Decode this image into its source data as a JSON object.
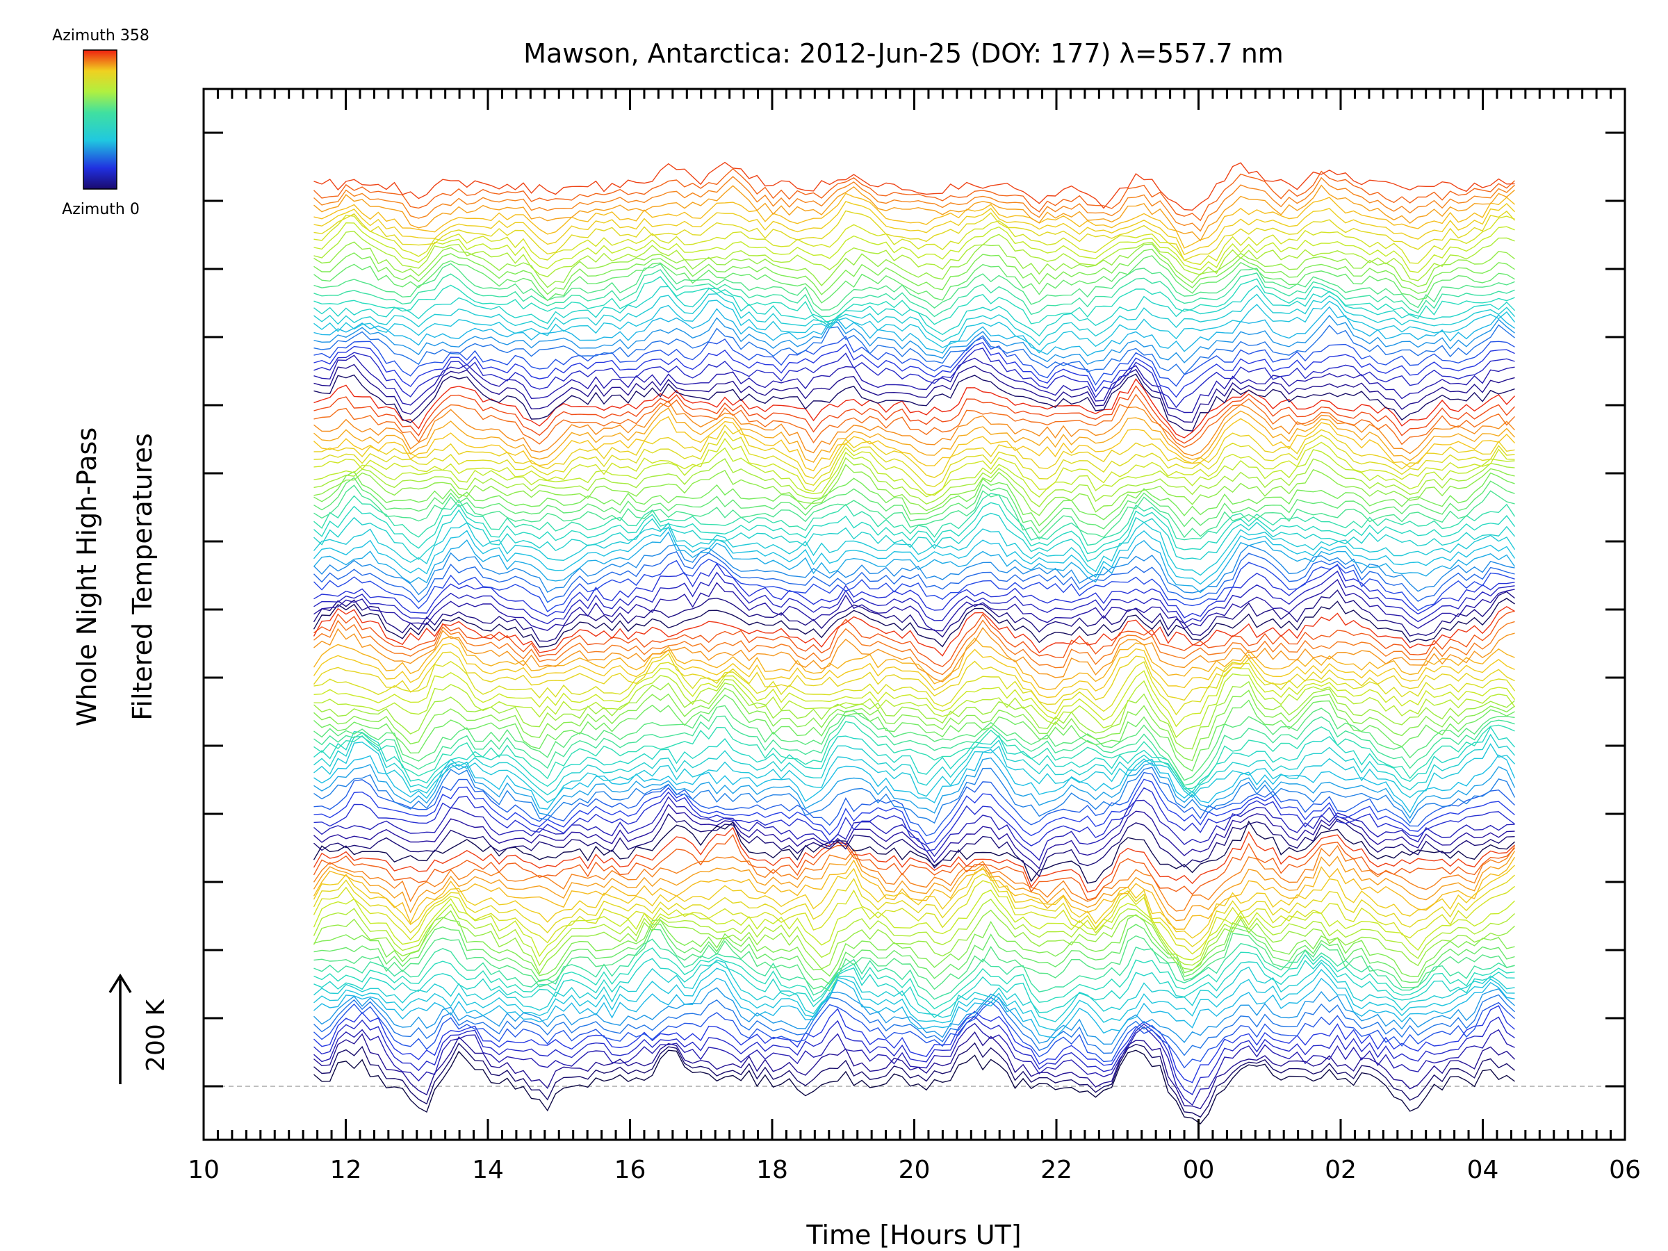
{
  "chart_data": {
    "type": "line",
    "title": "Mawson, Antarctica: 2012-Jun-25 (DOY: 177) λ=557.7 nm",
    "xlabel": "Time [Hours UT]",
    "ylabel_lines": [
      "Whole Night High-Pass",
      "Filtered Temperatures"
    ],
    "x_tick_labels": [
      "10",
      "12",
      "14",
      "16",
      "18",
      "20",
      "22",
      "00",
      "02",
      "04",
      "06"
    ],
    "x_tick_hours": [
      10,
      12,
      14,
      16,
      18,
      20,
      22,
      24,
      26,
      28,
      30
    ],
    "xlim_hours": [
      10,
      30
    ],
    "data_range_hours": [
      11.55,
      28.45
    ],
    "trace_count": 115,
    "scale_bar": {
      "label": "200 K",
      "value_k": 200
    },
    "colorbar": {
      "top_label": "Azimuth  358",
      "bottom_label": "Azimuth  0",
      "range": [
        0,
        358
      ],
      "colormap": "rainbow"
    },
    "features": {
      "peaks_hours": [
        12.1,
        13.5,
        16.5,
        17.3,
        19.0,
        21.0,
        23.2,
        24.7,
        25.8,
        28.3
      ],
      "troughs_hours": [
        13.0,
        14.8,
        18.7,
        20.3,
        21.8,
        22.6,
        23.7,
        24.0,
        27.0
      ]
    },
    "legend": "colorbar top-left",
    "grid": false
  }
}
